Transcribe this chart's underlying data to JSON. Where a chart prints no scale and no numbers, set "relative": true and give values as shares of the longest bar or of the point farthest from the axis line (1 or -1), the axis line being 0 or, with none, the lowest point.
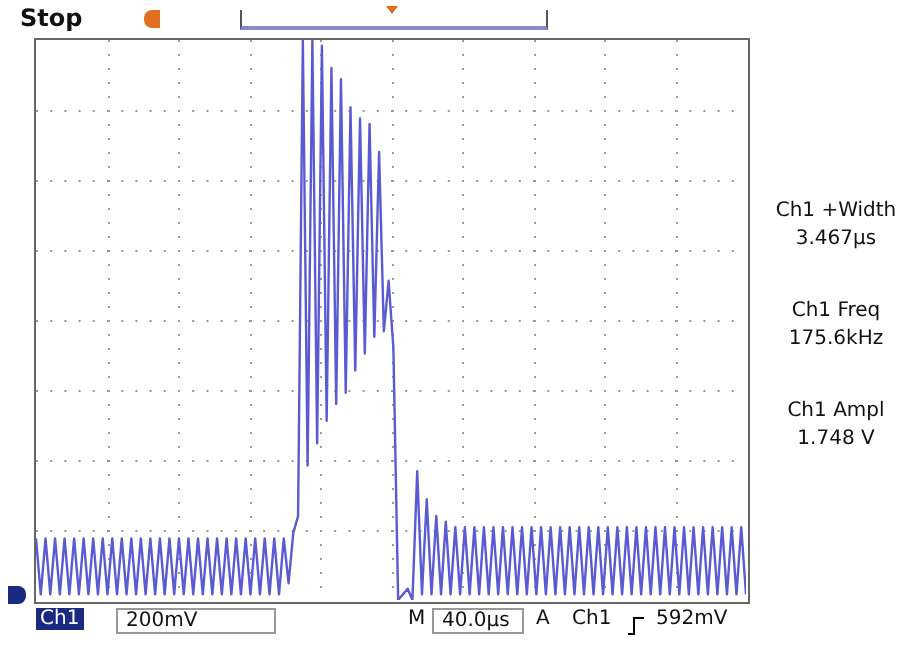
{
  "chart_data": {
    "type": "line",
    "relative": true,
    "grid": true,
    "legend": false,
    "marker": "none",
    "line_style": "solid",
    "annotations": [
      "Stop",
      "Ch1 +Width",
      "3.467µs",
      "Ch1 Freq",
      "175.6kHz",
      "Ch1 Ampl",
      "1.748 V",
      "Ch1",
      "200mV",
      "M",
      "40.0µs",
      "A",
      "Ch1",
      "592mV"
    ],
    "categories": [
      null,
      null,
      null,
      null,
      null,
      null,
      null,
      null,
      null,
      null,
      null,
      null,
      null,
      null,
      null,
      null,
      null,
      null,
      null,
      null,
      null,
      null,
      null,
      null,
      null,
      null,
      null,
      null,
      null,
      null,
      null,
      null,
      null,
      null,
      null,
      null,
      null,
      null,
      null,
      null,
      null,
      null,
      null,
      null,
      null,
      null,
      null,
      null,
      null,
      null,
      null,
      null,
      null,
      null,
      null,
      null,
      null,
      null,
      null,
      null,
      null,
      null,
      null,
      null,
      null,
      null,
      null,
      null,
      null,
      null,
      null,
      null,
      null,
      null,
      null,
      null,
      null,
      null,
      null,
      null,
      null,
      null,
      null,
      null,
      null,
      null,
      null,
      null,
      null,
      null,
      null,
      null,
      null,
      null,
      null,
      null,
      null,
      null,
      null,
      null,
      null,
      null,
      null,
      null,
      null,
      null,
      null,
      null,
      null,
      null,
      null,
      null,
      null,
      null,
      null,
      null,
      null,
      null,
      null,
      null,
      null,
      null,
      null,
      null,
      null,
      null,
      null,
      null,
      null,
      null,
      null,
      null,
      null,
      null,
      null,
      null,
      null,
      null,
      null,
      null,
      null,
      null,
      null,
      null,
      null,
      null,
      null,
      null,
      null,
      null
    ],
    "series": [
      {
        "color": "#5a5ad2",
        "values": [
          0.11,
          0.01,
          0.11,
          0.01,
          0.11,
          0.01,
          0.11,
          0.01,
          0.11,
          0.01,
          0.11,
          0.01,
          0.11,
          0.01,
          0.11,
          0.01,
          0.11,
          0.01,
          0.11,
          0.01,
          0.11,
          0.01,
          0.11,
          0.01,
          0.11,
          0.01,
          0.11,
          0.01,
          0.11,
          0.01,
          0.11,
          0.01,
          0.11,
          0.01,
          0.11,
          0.01,
          0.11,
          0.01,
          0.11,
          0.01,
          0.11,
          0.01,
          0.11,
          0.01,
          0.11,
          0.01,
          0.11,
          0.01,
          0.11,
          0.01,
          0.11,
          0.01,
          0.11,
          0.03,
          0.12,
          0.15,
          1.0,
          0.24,
          1.0,
          0.28,
          0.99,
          0.32,
          0.95,
          0.35,
          0.93,
          0.37,
          0.88,
          0.41,
          0.86,
          0.44,
          0.85,
          0.47,
          0.8,
          0.48,
          0.57,
          0.45,
          0.0,
          0.01,
          0.02,
          0.0,
          0.23,
          0.01,
          0.18,
          0.01,
          0.15,
          0.01,
          0.14,
          0.01,
          0.13,
          0.01,
          0.13,
          0.01,
          0.13,
          0.01,
          0.13,
          0.01,
          0.13,
          0.01,
          0.13,
          0.01,
          0.13,
          0.01,
          0.13,
          0.01,
          0.13,
          0.01,
          0.13,
          0.01,
          0.13,
          0.01,
          0.13,
          0.01,
          0.13,
          0.01,
          0.13,
          0.01,
          0.13,
          0.01,
          0.13,
          0.01,
          0.13,
          0.01,
          0.13,
          0.01,
          0.13,
          0.01,
          0.13,
          0.01,
          0.13,
          0.01,
          0.13,
          0.01,
          0.13,
          0.01,
          0.13,
          0.01,
          0.13,
          0.01,
          0.13,
          0.01,
          0.13,
          0.01,
          0.13,
          0.01,
          0.13,
          0.01,
          0.13,
          0.01,
          0.13,
          0.01
        ]
      }
    ]
  }
}
